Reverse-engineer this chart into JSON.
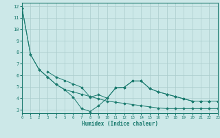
{
  "xlabel": "Humidex (Indice chaleur)",
  "background_color": "#cce8e8",
  "grid_color": "#aacccc",
  "line_color": "#1a7a6e",
  "x_data": [
    0,
    1,
    2,
    3,
    4,
    5,
    6,
    7,
    8,
    9,
    10,
    11,
    12,
    13,
    14,
    15,
    16,
    17,
    18,
    19,
    20,
    21,
    22,
    23
  ],
  "line1": [
    11.85,
    7.8,
    6.5,
    5.85,
    5.2,
    4.75,
    4.55,
    4.35,
    4.15,
    3.95,
    3.75,
    3.65,
    3.55,
    3.45,
    3.35,
    3.25,
    3.15,
    3.1,
    3.1,
    3.1,
    3.1,
    3.1,
    3.1,
    3.1
  ],
  "line2": [
    11.85,
    7.8,
    6.5,
    5.85,
    5.2,
    4.75,
    4.1,
    3.1,
    2.85,
    3.35,
    4.0,
    4.9,
    4.95,
    5.5,
    5.5,
    4.85,
    4.55,
    4.35,
    4.15,
    3.95,
    3.75,
    3.75,
    3.75,
    3.75
  ],
  "line3": [
    null,
    null,
    null,
    6.3,
    5.85,
    5.55,
    5.25,
    4.95,
    4.1,
    4.3,
    4.0,
    4.9,
    4.95,
    5.5,
    5.5,
    4.85,
    4.55,
    4.35,
    4.15,
    3.95,
    3.75,
    3.75,
    3.75,
    3.75
  ],
  "xlim": [
    0,
    23
  ],
  "ylim": [
    2.7,
    12.3
  ],
  "yticks": [
    3,
    4,
    5,
    6,
    7,
    8,
    9,
    10,
    11,
    12
  ],
  "xticks": [
    0,
    1,
    2,
    3,
    4,
    5,
    6,
    7,
    8,
    9,
    10,
    11,
    12,
    13,
    14,
    15,
    16,
    17,
    18,
    19,
    20,
    21,
    22,
    23
  ]
}
